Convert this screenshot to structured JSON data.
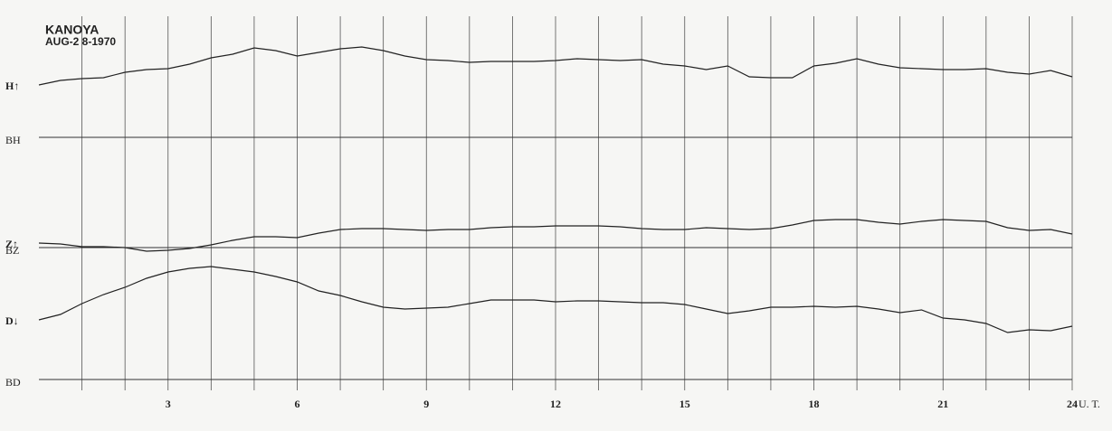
{
  "chart_data": {
    "type": "line",
    "title": "KANOYA",
    "subtitle": "AUG-2 8-1970",
    "xlabel": "U. T.",
    "xlim": [
      0,
      24
    ],
    "xticks": [
      3,
      6,
      9,
      12,
      15,
      18,
      21,
      24
    ],
    "x_gridlines": [
      1,
      2,
      3,
      4,
      5,
      6,
      7,
      8,
      9,
      10,
      11,
      12,
      13,
      14,
      15,
      16,
      17,
      18,
      19,
      20,
      21,
      22,
      23,
      24
    ],
    "ylim": [
      0,
      400
    ],
    "x": [
      0,
      0.5,
      1,
      1.5,
      2,
      2.5,
      3,
      3.5,
      4,
      4.5,
      5,
      5.5,
      6,
      6.5,
      7,
      7.5,
      8,
      8.5,
      9,
      9.5,
      10,
      10.5,
      11,
      11.5,
      12,
      12.5,
      13,
      13.5,
      14,
      14.5,
      15,
      15.5,
      16,
      16.5,
      17,
      17.5,
      18,
      18.5,
      19,
      19.5,
      20,
      20.5,
      21,
      21.5,
      22,
      22.5,
      23,
      23.5,
      24
    ],
    "series": [
      {
        "name": "H↑",
        "color": "#222222",
        "values": [
          326,
          331,
          333,
          334,
          340,
          343,
          344,
          349,
          356,
          360,
          367,
          364,
          358,
          362,
          366,
          368,
          364,
          358,
          354,
          353,
          351,
          352,
          352,
          352,
          353,
          355,
          354,
          353,
          354,
          349,
          347,
          343,
          347,
          335,
          334,
          334,
          347,
          350,
          355,
          349,
          345,
          344,
          343,
          343,
          344,
          340,
          338,
          342,
          335
        ]
      },
      {
        "name": "Z↑",
        "color": "#222222",
        "values": [
          151,
          150,
          147,
          147,
          146,
          142,
          143,
          145,
          149,
          154,
          158,
          158,
          157,
          162,
          166,
          167,
          167,
          166,
          165,
          166,
          166,
          168,
          169,
          169,
          170,
          170,
          170,
          169,
          167,
          166,
          166,
          168,
          167,
          166,
          167,
          171,
          176,
          177,
          177,
          174,
          172,
          175,
          177,
          176,
          175,
          168,
          165,
          166,
          161
        ]
      },
      {
        "name": "D↓",
        "color": "#222222",
        "values": [
          66,
          72,
          84,
          94,
          102,
          112,
          119,
          123,
          125,
          122,
          119,
          114,
          108,
          98,
          93,
          86,
          80,
          78,
          79,
          80,
          84,
          88,
          88,
          88,
          86,
          87,
          87,
          86,
          85,
          85,
          83,
          78,
          73,
          76,
          80,
          80,
          81,
          80,
          81,
          78,
          74,
          77,
          68,
          66,
          62,
          52,
          55,
          54,
          59
        ]
      }
    ],
    "baselines": [
      {
        "label": "BH",
        "value": 268
      },
      {
        "label": "BZ",
        "value": 146
      },
      {
        "label": "BD",
        "value": 0
      }
    ]
  }
}
